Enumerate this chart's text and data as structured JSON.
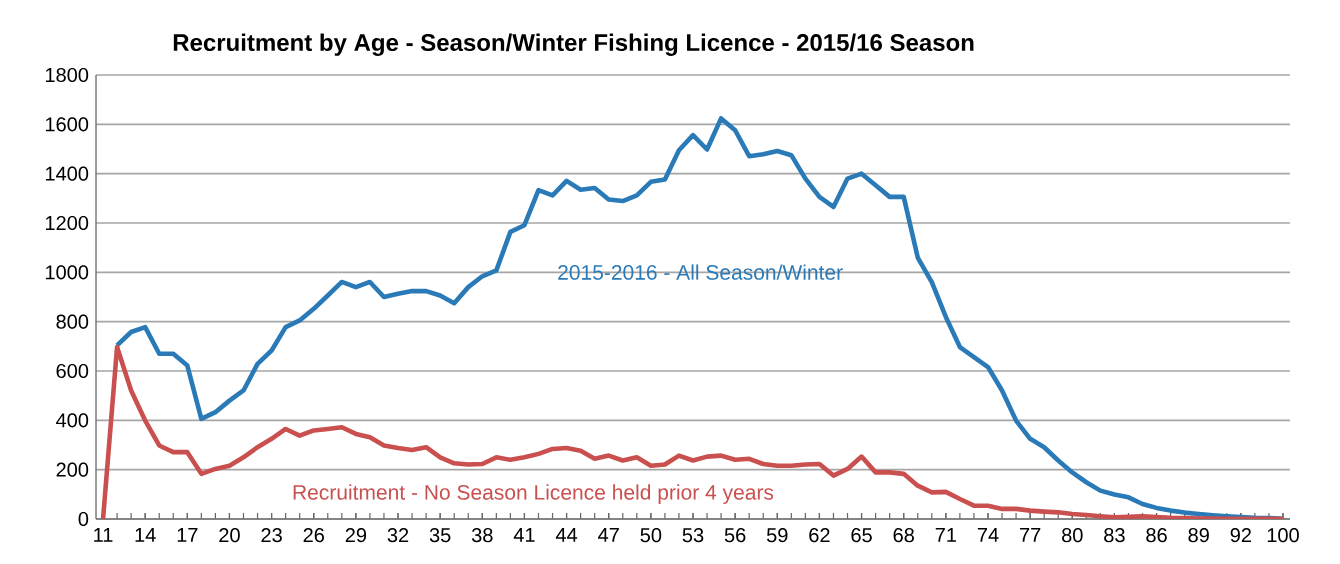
{
  "chart_data": {
    "type": "line",
    "title": "Recruitment by Age - Season/Winter Fishing Licence - 2015/16 Season",
    "categories": [
      "11",
      null,
      null,
      "14",
      null,
      null,
      "17",
      null,
      null,
      "20",
      null,
      null,
      "23",
      null,
      null,
      "26",
      null,
      null,
      "29",
      null,
      null,
      "32",
      null,
      null,
      "35",
      null,
      null,
      "38",
      null,
      null,
      "41",
      null,
      null,
      "44",
      null,
      null,
      "47",
      null,
      null,
      "50",
      null,
      null,
      "53",
      null,
      null,
      "56",
      null,
      null,
      "59",
      null,
      null,
      "62",
      null,
      null,
      "65",
      null,
      null,
      "68",
      null,
      null,
      "71",
      null,
      null,
      "74",
      null,
      null,
      "77",
      null,
      null,
      "80",
      null,
      null,
      "83",
      null,
      null,
      "86",
      null,
      null,
      "89",
      null,
      null,
      "92",
      null,
      null,
      "100"
    ],
    "series": [
      {
        "name": "2015-2016  - All Season/Winter",
        "color": "#2a7ab8",
        "values": [
          null,
          704,
          758,
          778,
          670,
          670,
          622,
          406,
          433,
          480,
          521,
          629,
          683,
          778,
          805,
          852,
          906,
          961,
          940,
          961,
          900,
          913,
          924,
          924,
          906,
          875,
          940,
          984,
          1008,
          1164,
          1191,
          1333,
          1312,
          1371,
          1335,
          1342,
          1295,
          1289,
          1312,
          1367,
          1376,
          1495,
          1556,
          1498,
          1624,
          1576,
          1471,
          1479,
          1492,
          1475,
          1380,
          1306,
          1265,
          1380,
          1400,
          1353,
          1306,
          1306,
          1060,
          960,
          819,
          697,
          656,
          616,
          521,
          399,
          325,
          291,
          237,
          189,
          149,
          115,
          99,
          88,
          61,
          45,
          34,
          26,
          20,
          15,
          11,
          8,
          5,
          4,
          1
        ]
      },
      {
        "name": "Recruitment - No Season Licence held prior 4 years",
        "color": "#c9504f",
        "values": [
          0,
          697,
          521,
          399,
          298,
          271,
          271,
          183,
          203,
          216,
          250,
          291,
          325,
          365,
          338,
          359,
          365,
          372,
          345,
          331,
          298,
          288,
          280,
          291,
          250,
          226,
          221,
          223,
          250,
          240,
          250,
          264,
          284,
          288,
          277,
          244,
          257,
          237,
          250,
          216,
          221,
          257,
          237,
          253,
          257,
          240,
          244,
          223,
          216,
          216,
          221,
          223,
          176,
          203,
          253,
          189,
          189,
          183,
          135,
          108,
          110,
          81,
          54,
          54,
          41,
          41,
          34,
          30,
          27,
          20,
          16,
          11,
          7,
          9,
          11,
          8,
          5,
          4,
          2,
          2,
          1,
          1,
          1,
          1,
          0
        ]
      }
    ],
    "ylim": [
      0,
      1800
    ],
    "yticks": [
      0,
      200,
      400,
      600,
      800,
      1000,
      1200,
      1400,
      1600,
      1800
    ],
    "grid": "y",
    "legend": false,
    "marker": "none",
    "line_style": "solid"
  }
}
